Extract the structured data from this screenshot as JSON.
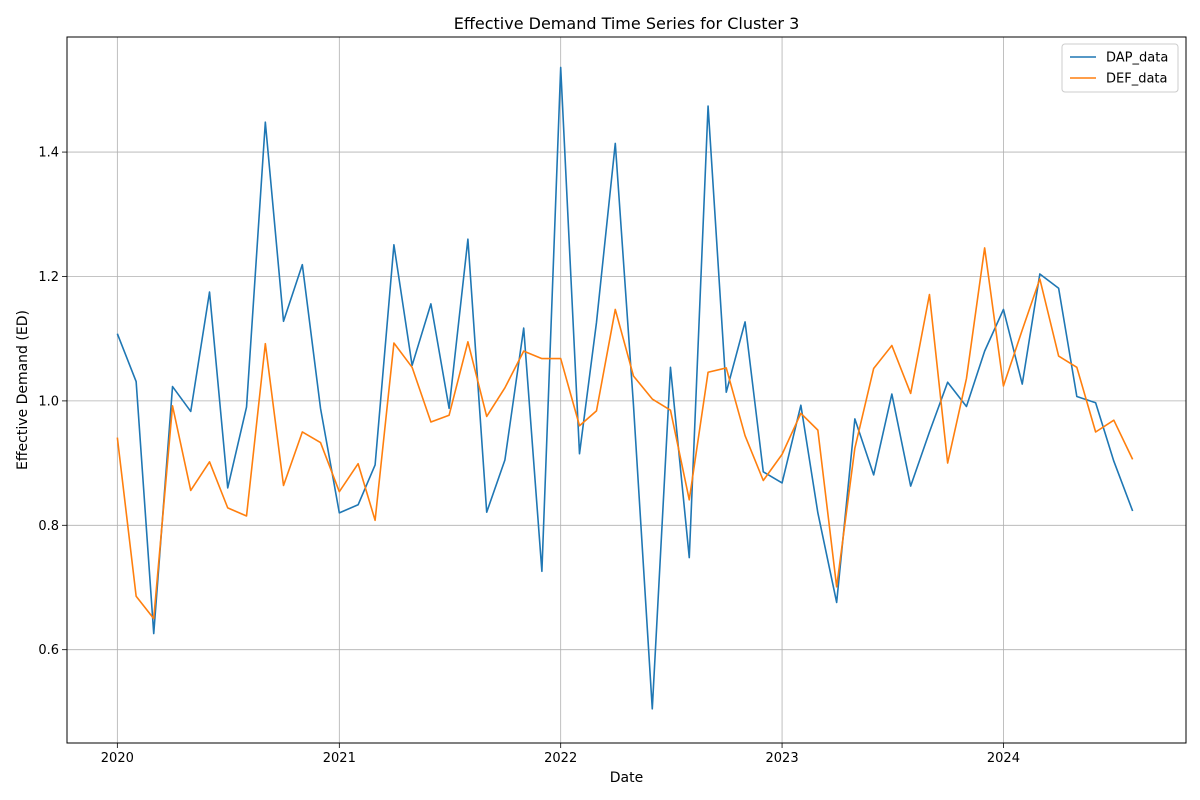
{
  "chart_data": {
    "type": "line",
    "title": "Effective Demand Time Series for Cluster 3",
    "xlabel": "Date",
    "ylabel": "Effective Demand (ED)",
    "x_axis": "date",
    "xlim": [
      "2019-10-10",
      "2024-10-28"
    ],
    "ylim": [
      0.45,
      1.585
    ],
    "x_ticks": [
      {
        "date": "2020-01-01",
        "label": "2020"
      },
      {
        "date": "2021-01-01",
        "label": "2021"
      },
      {
        "date": "2022-01-01",
        "label": "2022"
      },
      {
        "date": "2023-01-01",
        "label": "2023"
      },
      {
        "date": "2024-01-01",
        "label": "2024"
      }
    ],
    "y_ticks": [
      {
        "value": 0.6,
        "label": "0.6"
      },
      {
        "value": 0.8,
        "label": "0.8"
      },
      {
        "value": 1.0,
        "label": "1.0"
      },
      {
        "value": 1.2,
        "label": "1.2"
      },
      {
        "value": 1.4,
        "label": "1.4"
      }
    ],
    "grid": true,
    "legend_position": "top-right",
    "x": [
      "2020-01-01",
      "2020-02-01",
      "2020-03-01",
      "2020-04-01",
      "2020-05-01",
      "2020-06-01",
      "2020-07-01",
      "2020-08-01",
      "2020-09-01",
      "2020-10-01",
      "2020-11-01",
      "2020-12-01",
      "2021-01-01",
      "2021-02-01",
      "2021-03-01",
      "2021-04-01",
      "2021-05-01",
      "2021-06-01",
      "2021-07-01",
      "2021-08-01",
      "2021-09-01",
      "2021-10-01",
      "2021-11-01",
      "2021-12-01",
      "2022-01-01",
      "2022-02-01",
      "2022-03-01",
      "2022-04-01",
      "2022-05-01",
      "2022-06-01",
      "2022-07-01",
      "2022-08-01",
      "2022-09-01",
      "2022-10-01",
      "2022-11-01",
      "2022-12-01",
      "2023-01-01",
      "2023-02-01",
      "2023-03-01",
      "2023-04-01",
      "2023-05-01",
      "2023-06-01",
      "2023-07-01",
      "2023-08-01",
      "2023-09-01",
      "2023-10-01",
      "2023-11-01",
      "2023-12-01",
      "2024-01-01",
      "2024-02-01",
      "2024-03-01",
      "2024-04-01",
      "2024-05-01",
      "2024-06-01",
      "2024-07-01",
      "2024-08-01"
    ],
    "series": [
      {
        "name": "DAP_data",
        "color": "#1f77b4",
        "values": [
          1.108,
          1.031,
          0.626,
          1.023,
          0.983,
          1.175,
          0.86,
          0.99,
          1.448,
          1.128,
          1.219,
          0.988,
          0.82,
          0.833,
          0.897,
          1.251,
          1.057,
          1.156,
          0.988,
          1.26,
          0.821,
          0.905,
          1.117,
          0.726,
          1.536,
          0.915,
          1.126,
          1.414,
          0.993,
          0.505,
          1.054,
          0.748,
          1.474,
          1.014,
          1.127,
          0.886,
          0.868,
          0.993,
          0.82,
          0.676,
          0.971,
          0.881,
          1.011,
          0.863,
          0.95,
          1.03,
          0.991,
          1.08,
          1.147,
          1.027,
          1.204,
          1.181,
          1.007,
          0.997,
          0.903,
          0.823
        ]
      },
      {
        "name": "DEF_data",
        "color": "#ff7f0e",
        "values": [
          0.941,
          0.686,
          0.65,
          0.992,
          0.856,
          0.902,
          0.828,
          0.815,
          1.092,
          0.864,
          0.95,
          0.933,
          0.854,
          0.899,
          0.808,
          1.093,
          1.054,
          0.966,
          0.977,
          1.095,
          0.975,
          1.021,
          1.08,
          1.068,
          1.068,
          0.96,
          0.984,
          1.147,
          1.04,
          1.003,
          0.985,
          0.841,
          1.046,
          1.053,
          0.944,
          0.872,
          0.914,
          0.98,
          0.953,
          0.701,
          0.924,
          1.052,
          1.089,
          1.012,
          1.171,
          0.9,
          1.036,
          1.246,
          1.024,
          1.114,
          1.196,
          1.072,
          1.054,
          0.95,
          0.969,
          0.906
        ]
      }
    ]
  }
}
